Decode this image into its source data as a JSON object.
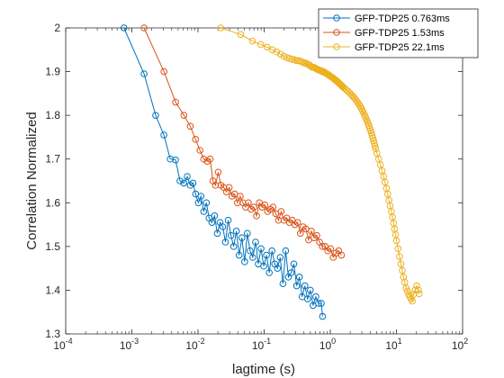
{
  "chart_data": {
    "type": "scatter",
    "xlabel": "lagtime (s)",
    "ylabel": "Correlation Normalized",
    "xscale": "log",
    "xlim": [
      0.0001,
      100
    ],
    "ylim": [
      1.3,
      2.0
    ],
    "xticks": [
      0.0001,
      0.001,
      0.01,
      0.1,
      1,
      10,
      100
    ],
    "xtick_labels": [
      {
        "base": "10",
        "exp": "-4"
      },
      {
        "base": "10",
        "exp": "-3"
      },
      {
        "base": "10",
        "exp": "-2"
      },
      {
        "base": "10",
        "exp": "-1"
      },
      {
        "base": "10",
        "exp": "0"
      },
      {
        "base": "10",
        "exp": "1"
      },
      {
        "base": "10",
        "exp": "2"
      }
    ],
    "yticks": [
      "1.3",
      "1.4",
      "1.5",
      "1.6",
      "1.7",
      "1.8",
      "1.9",
      "2"
    ],
    "grid": false,
    "legend_position": "top-right",
    "series": [
      {
        "name": "GFP-TDP25 0.763ms",
        "color": "#0072BD",
        "x": [
          0.00076,
          0.00153,
          0.00229,
          0.00305,
          0.00381,
          0.00458,
          0.00534,
          0.0061,
          0.00687,
          0.00763,
          0.0084,
          0.0092,
          0.0101,
          0.0111,
          0.0122,
          0.0134,
          0.0147,
          0.0162,
          0.0178,
          0.0196,
          0.0215,
          0.0237,
          0.026,
          0.0286,
          0.0315,
          0.0346,
          0.0381,
          0.0419,
          0.0461,
          0.0507,
          0.0557,
          0.0613,
          0.0674,
          0.0742,
          0.0816,
          0.0897,
          0.0987,
          0.1086,
          0.1194,
          0.1314,
          0.1445,
          0.159,
          0.1749,
          0.1924,
          0.2116,
          0.2328,
          0.256,
          0.2816,
          0.3098,
          0.3408,
          0.3749,
          0.4124,
          0.4536,
          0.499,
          0.5489,
          0.6038,
          0.6641,
          0.7306,
          0.763
        ],
        "y": [
          2.0,
          1.895,
          1.8,
          1.755,
          1.7,
          1.698,
          1.65,
          1.645,
          1.66,
          1.64,
          1.645,
          1.62,
          1.6,
          1.615,
          1.58,
          1.6,
          1.565,
          1.555,
          1.57,
          1.53,
          1.555,
          1.545,
          1.51,
          1.56,
          1.525,
          1.5,
          1.535,
          1.48,
          1.52,
          1.465,
          1.53,
          1.49,
          1.475,
          1.51,
          1.46,
          1.495,
          1.455,
          1.48,
          1.44,
          1.49,
          1.46,
          1.45,
          1.475,
          1.415,
          1.49,
          1.43,
          1.44,
          1.46,
          1.41,
          1.43,
          1.385,
          1.41,
          1.38,
          1.4,
          1.365,
          1.385,
          1.37,
          1.37,
          1.34
        ]
      },
      {
        "name": "GFP-TDP25 1.53ms",
        "color": "#D95319",
        "x": [
          0.00153,
          0.00306,
          0.00459,
          0.00612,
          0.00765,
          0.00918,
          0.0107,
          0.0122,
          0.0138,
          0.0153,
          0.0168,
          0.0184,
          0.0202,
          0.0222,
          0.0245,
          0.0269,
          0.0296,
          0.0326,
          0.0358,
          0.0394,
          0.0434,
          0.0477,
          0.0525,
          0.0577,
          0.0635,
          0.0698,
          0.0768,
          0.0845,
          0.093,
          0.1023,
          0.1125,
          0.1237,
          0.1361,
          0.1497,
          0.1647,
          0.1811,
          0.1993,
          0.2192,
          0.2411,
          0.2652,
          0.2918,
          0.321,
          0.3531,
          0.3884,
          0.4272,
          0.4699,
          0.5169,
          0.5686,
          0.6255,
          0.688,
          0.7568,
          0.8325,
          0.9158,
          1.0074,
          1.1081,
          1.2189,
          1.3408,
          1.4749
        ],
        "y": [
          2.0,
          1.9,
          1.83,
          1.8,
          1.775,
          1.745,
          1.72,
          1.7,
          1.695,
          1.7,
          1.65,
          1.64,
          1.67,
          1.64,
          1.635,
          1.625,
          1.635,
          1.615,
          1.62,
          1.6,
          1.615,
          1.6,
          1.59,
          1.6,
          1.585,
          1.59,
          1.57,
          1.6,
          1.59,
          1.595,
          1.58,
          1.585,
          1.59,
          1.575,
          1.56,
          1.58,
          1.56,
          1.565,
          1.555,
          1.56,
          1.55,
          1.555,
          1.53,
          1.545,
          1.54,
          1.515,
          1.535,
          1.52,
          1.525,
          1.51,
          1.5,
          1.5,
          1.49,
          1.495,
          1.475,
          1.485,
          1.49,
          1.48
        ]
      },
      {
        "name": "GFP-TDP25 22.1ms",
        "color": "#EDB120",
        "x": [
          0.0221,
          0.0442,
          0.0663,
          0.0884,
          0.1105,
          0.1326,
          0.1547,
          0.1768,
          0.1989,
          0.221,
          0.2431,
          0.2652,
          0.2873,
          0.3094,
          0.3315,
          0.3536,
          0.3757,
          0.3978,
          0.4199,
          0.442,
          0.4641,
          0.4862,
          0.5083,
          0.5304,
          0.5525,
          0.5746,
          0.5967,
          0.6188,
          0.6409,
          0.663,
          0.6851,
          0.7072,
          0.7293,
          0.7514,
          0.7735,
          0.7956,
          0.8177,
          0.8398,
          0.8619,
          0.884,
          0.9061,
          0.9282,
          0.9503,
          0.9724,
          0.9945,
          1.0166,
          1.0387,
          1.0608,
          1.0829,
          1.105,
          1.1271,
          1.1492,
          1.1713,
          1.1934,
          1.2155,
          1.2376,
          1.2597,
          1.2818,
          1.3039,
          1.326,
          1.3481,
          1.3702,
          1.3923,
          1.4144,
          1.4365,
          1.4586,
          1.4807,
          1.5028,
          1.5249,
          1.547,
          1.6354,
          1.7459,
          1.8564,
          1.9669,
          2.0774,
          2.1879,
          2.2984,
          2.4089,
          2.5194,
          2.6299,
          2.7404,
          2.8509,
          2.9614,
          3.0719,
          3.1824,
          3.2929,
          3.4034,
          3.5139,
          3.6244,
          3.7349,
          3.8454,
          3.9559,
          4.0664,
          4.1769,
          4.2874,
          4.3979,
          4.5084,
          4.6189,
          4.7294,
          4.8399,
          5.0609,
          5.3924,
          5.7239,
          6.0554,
          6.3869,
          6.7184,
          7.0499,
          7.3814,
          7.7129,
          8.0444,
          8.3759,
          8.7074,
          9.0389,
          9.3704,
          9.7019,
          10.0334,
          10.5859,
          11.1384,
          11.6909,
          12.2434,
          12.7959,
          13.3484,
          14.0114,
          14.6744,
          15.3374,
          16.0004,
          16.6634,
          17.3264,
          18.1,
          19.2,
          20.3,
          21.5,
          22.1
        ],
        "y": [
          2.0,
          1.985,
          1.97,
          1.962,
          1.956,
          1.95,
          1.945,
          1.94,
          1.935,
          1.932,
          1.93,
          1.928,
          1.927,
          1.925,
          1.925,
          1.924,
          1.922,
          1.92,
          1.92,
          1.918,
          1.916,
          1.915,
          1.912,
          1.91,
          1.91,
          1.909,
          1.908,
          1.906,
          1.905,
          1.904,
          1.903,
          1.902,
          1.902,
          1.9,
          1.9,
          1.9,
          1.898,
          1.897,
          1.896,
          1.895,
          1.894,
          1.893,
          1.892,
          1.891,
          1.89,
          1.889,
          1.888,
          1.887,
          1.886,
          1.885,
          1.884,
          1.883,
          1.882,
          1.881,
          1.88,
          1.879,
          1.878,
          1.877,
          1.876,
          1.875,
          1.874,
          1.873,
          1.872,
          1.871,
          1.87,
          1.869,
          1.868,
          1.867,
          1.866,
          1.865,
          1.862,
          1.858,
          1.855,
          1.851,
          1.847,
          1.844,
          1.84,
          1.836,
          1.832,
          1.828,
          1.824,
          1.82,
          1.815,
          1.81,
          1.806,
          1.801,
          1.796,
          1.791,
          1.786,
          1.781,
          1.776,
          1.77,
          1.765,
          1.76,
          1.754,
          1.748,
          1.742,
          1.736,
          1.73,
          1.724,
          1.713,
          1.7,
          1.687,
          1.673,
          1.66,
          1.647,
          1.633,
          1.62,
          1.606,
          1.593,
          1.58,
          1.567,
          1.553,
          1.54,
          1.527,
          1.513,
          1.495,
          1.477,
          1.46,
          1.445,
          1.43,
          1.418,
          1.405,
          1.398,
          1.39,
          1.385,
          1.38,
          1.375,
          1.39,
          1.4,
          1.41,
          1.4,
          1.392
        ]
      }
    ]
  }
}
